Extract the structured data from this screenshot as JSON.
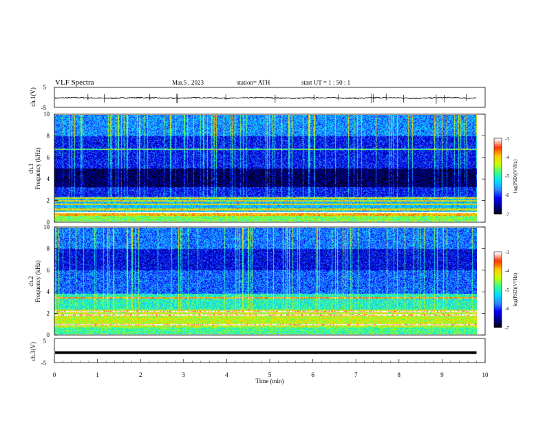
{
  "header": {
    "title": "VLF  Spectra",
    "date": "Mar.5  , 2023",
    "station": "station= ATH",
    "start_ut": "start  UT  =   1  : 50 : 1"
  },
  "colors": {
    "frame": "#000000",
    "background": "#ffffff",
    "waveform": "#000000",
    "colormap": [
      "#000000",
      "#00008c",
      "#0000ff",
      "#2e8bff",
      "#00e0ff",
      "#38ff8c",
      "#c8ff00",
      "#ffcc00",
      "#ff3000",
      "#ffffff"
    ]
  },
  "chart_data": [
    {
      "type": "line",
      "panel": "ch1-waveform",
      "ylabel": "ch.1(V)",
      "ylim": [
        -5,
        5
      ],
      "yticks": [
        "5",
        "-5"
      ],
      "xlim": [
        0,
        10
      ],
      "series": [
        {
          "description": "black waveform centered slightly below 0 V, amplitude about ±0.5 V with sparse spikes",
          "mean": -0.3,
          "amplitude": 0.5
        }
      ]
    },
    {
      "type": "heatmap",
      "panel": "ch1-spectrogram",
      "ylabel_line1": "ch.1",
      "ylabel_line2": "Frequency  (kHz)",
      "ylim": [
        0,
        10
      ],
      "yticks": [
        "0",
        "2",
        "4",
        "6",
        "8",
        "10"
      ],
      "xlim": [
        0,
        10
      ],
      "colorbar": {
        "label": "log(PSD)(V²/Hz)",
        "range": [
          -7,
          -3
        ],
        "ticks": [
          "-3",
          "-4",
          "-5",
          "-6",
          "-7"
        ]
      },
      "data_end_min": 9.8,
      "bands": [
        {
          "f": [
            0.0,
            0.5
          ],
          "level": -4.6
        },
        {
          "f": [
            0.5,
            0.9
          ],
          "level": -3.9
        },
        {
          "f": [
            0.9,
            2.3
          ],
          "level": -5.4
        },
        {
          "f": [
            2.3,
            3.2
          ],
          "level": -6.1
        },
        {
          "f": [
            3.2,
            5.0
          ],
          "level": -6.7
        },
        {
          "f": [
            5.0,
            8.0
          ],
          "level": -6.1
        },
        {
          "f": [
            8.0,
            10.0
          ],
          "level": -5.6
        }
      ],
      "lines_khz": [
        0.8,
        1.1,
        1.6,
        1.9,
        2.2,
        6.8
      ]
    },
    {
      "type": "heatmap",
      "panel": "ch2-spectrogram",
      "ylabel_line1": "ch.2",
      "ylabel_line2": "Frequency  (kHz)",
      "ylim": [
        0,
        10
      ],
      "yticks": [
        "0",
        "2",
        "4",
        "6",
        "8",
        "10"
      ],
      "xlim": [
        0,
        10
      ],
      "colorbar": {
        "label": "log(PSD)(V²/Hz)",
        "range": [
          -7,
          -3
        ],
        "ticks": [
          "-3",
          "-4",
          "-5",
          "-6",
          "-7"
        ]
      },
      "data_end_min": 9.8,
      "bands": [
        {
          "f": [
            0.0,
            0.6
          ],
          "level": -4.8
        },
        {
          "f": [
            0.6,
            2.3
          ],
          "level": -4.3
        },
        {
          "f": [
            2.3,
            3.8
          ],
          "level": -5.0
        },
        {
          "f": [
            3.8,
            6.0
          ],
          "level": -5.8
        },
        {
          "f": [
            6.0,
            8.0
          ],
          "level": -6.2
        },
        {
          "f": [
            8.0,
            10.0
          ],
          "level": -5.7
        }
      ],
      "lines_khz": [
        0.9,
        1.8,
        2.1,
        3.4
      ]
    },
    {
      "type": "line",
      "panel": "ch3-waveform",
      "ylabel": "ch.3(V)",
      "ylim": [
        -5,
        5
      ],
      "yticks": [
        "5",
        "-5"
      ],
      "xlim": [
        0,
        10
      ],
      "xlabel": "Time  (min)",
      "xticks": [
        "0",
        "1",
        "2",
        "3",
        "4",
        "5",
        "6",
        "7",
        "8",
        "9",
        "10"
      ],
      "series": [
        {
          "description": "flat thick black trace",
          "mean": -0.9,
          "amplitude": 0.15
        }
      ]
    }
  ]
}
